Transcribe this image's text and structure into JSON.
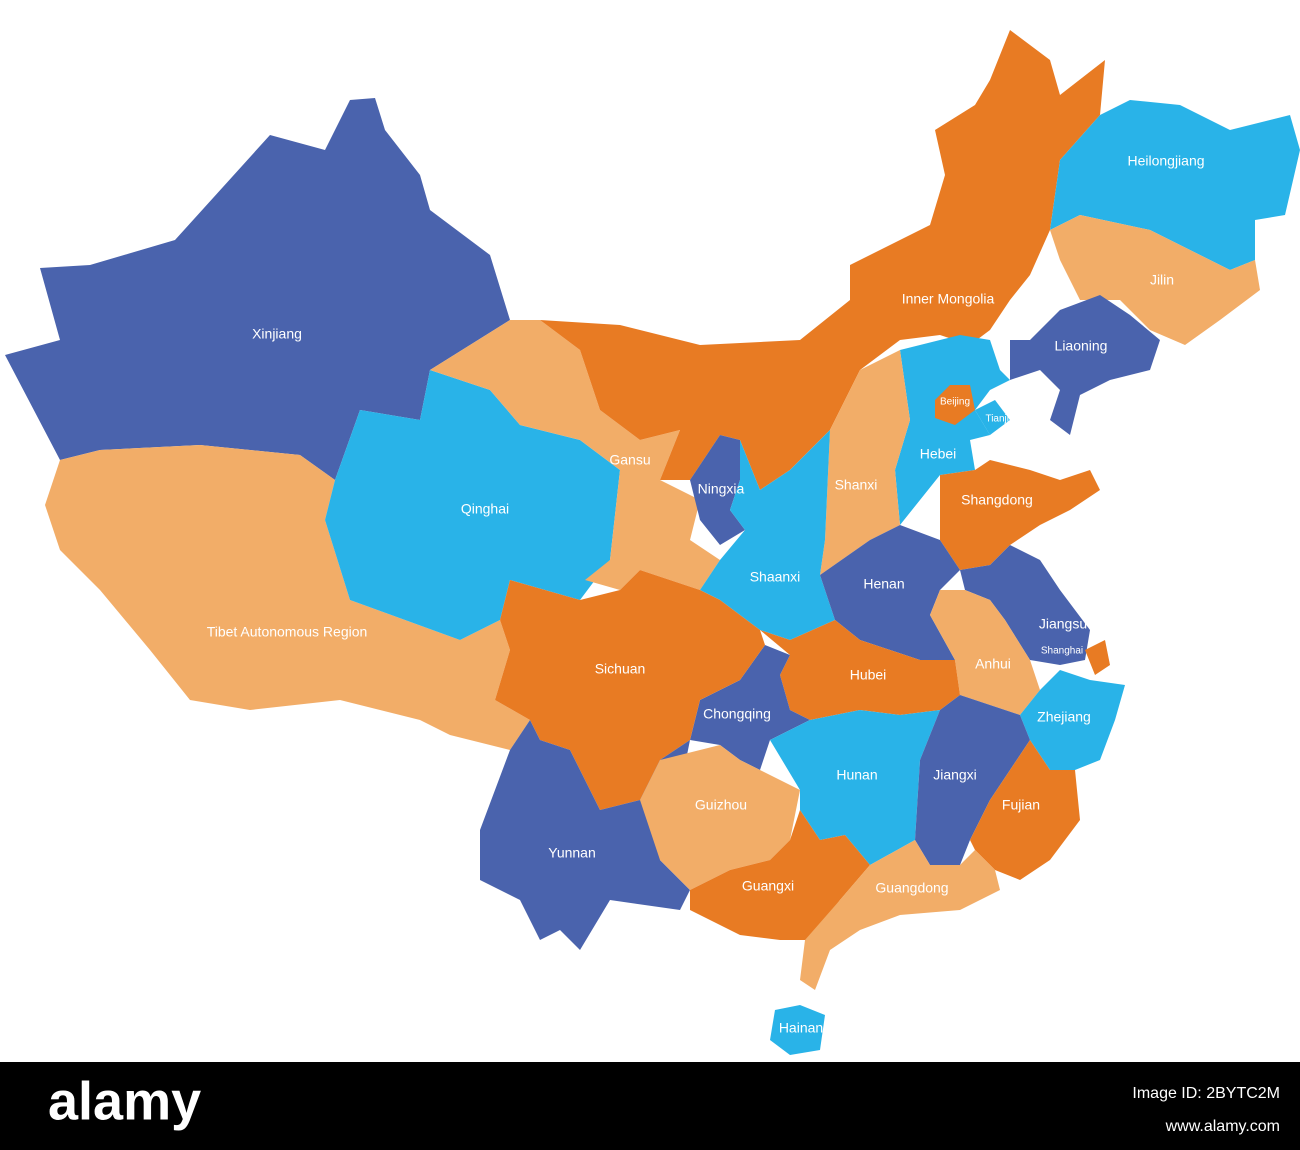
{
  "map": {
    "regions": [
      {
        "name": "Xinjiang"
      },
      {
        "name": "Tibet Autonomous Region"
      },
      {
        "name": "Qinghai"
      },
      {
        "name": "Gansu"
      },
      {
        "name": "Inner Mongolia"
      },
      {
        "name": "Heilongjiang"
      },
      {
        "name": "Jilin"
      },
      {
        "name": "Liaoning"
      },
      {
        "name": "Hebei"
      },
      {
        "name": "Beijing"
      },
      {
        "name": "Tianjin"
      },
      {
        "name": "Shanxi"
      },
      {
        "name": "Ningxia"
      },
      {
        "name": "Shaanxi"
      },
      {
        "name": "Shangdong"
      },
      {
        "name": "Henan"
      },
      {
        "name": "Jiangsu"
      },
      {
        "name": "Shanghai"
      },
      {
        "name": "Anhui"
      },
      {
        "name": "Zhejiang"
      },
      {
        "name": "Hubei"
      },
      {
        "name": "Chongqing"
      },
      {
        "name": "Sichuan"
      },
      {
        "name": "Yunnan"
      },
      {
        "name": "Guizhou"
      },
      {
        "name": "Hunan"
      },
      {
        "name": "Jiangxi"
      },
      {
        "name": "Fujian"
      },
      {
        "name": "Guangxi"
      },
      {
        "name": "Guangdong"
      },
      {
        "name": "Hainan"
      }
    ]
  },
  "footer": {
    "logo": "alamy",
    "image_id": "Image ID: 2BYTC2M",
    "url": "www.alamy.com"
  }
}
